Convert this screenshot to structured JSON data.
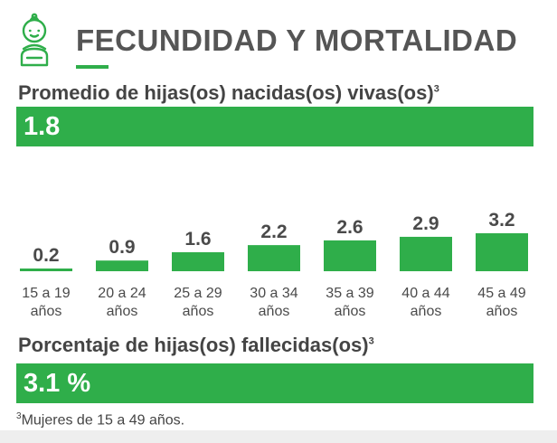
{
  "header": {
    "title": "FECUNDIDAD Y MORTALIDAD",
    "icon": "baby-icon",
    "accent_color": "#2fae4a"
  },
  "avg_children": {
    "label": "Promedio de hijas(os) nacidas(os) vivas(os)",
    "note_ref": "3",
    "value": "1.8"
  },
  "chart_data": {
    "type": "bar",
    "categories": [
      "15 a 19 años",
      "20 a 24 años",
      "25 a 29 años",
      "30 a 34 años",
      "35 a 39 años",
      "40 a 44 años",
      "45 a 49 años"
    ],
    "category_lines": [
      [
        "15 a 19",
        "años"
      ],
      [
        "20 a 24",
        "años"
      ],
      [
        "25 a 29",
        "años"
      ],
      [
        "30 a 34",
        "años"
      ],
      [
        "35 a 39",
        "años"
      ],
      [
        "40 a 44",
        "años"
      ],
      [
        "45 a 49",
        "años"
      ]
    ],
    "values": [
      0.2,
      0.9,
      1.6,
      2.2,
      2.6,
      2.9,
      3.2
    ],
    "value_labels": [
      "0.2",
      "0.9",
      "1.6",
      "2.2",
      "2.6",
      "2.9",
      "3.2"
    ],
    "title": "",
    "xlabel": "",
    "ylabel": "",
    "ylim": [
      0,
      3.2
    ],
    "grid": false,
    "bar_color": "#2fae4a"
  },
  "mortality": {
    "label": "Porcentaje de hijas(os) fallecidas(os)",
    "note_ref": "3",
    "value": "3.1 %"
  },
  "footnote": {
    "ref": "3",
    "text": "Mujeres de 15 a 49 años."
  }
}
